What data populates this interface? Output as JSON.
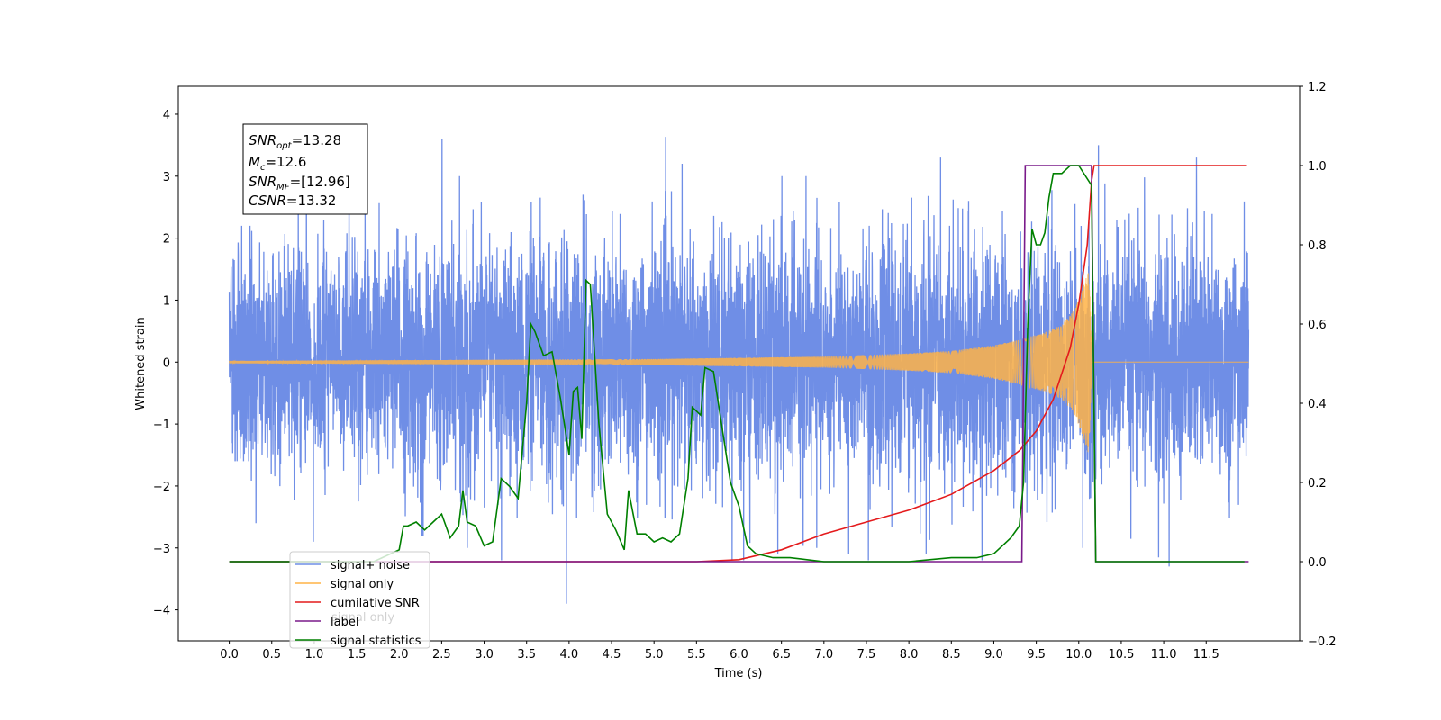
{
  "chart_data": {
    "type": "line",
    "xlabel": "Time (s)",
    "ylabel": "Whitened strain",
    "xlim": [
      -0.6,
      12.6
    ],
    "ylim": [
      -4.5,
      4.45
    ],
    "y2lim": [
      -0.2,
      1.2
    ],
    "x_ticks": [
      0.0,
      0.5,
      1.0,
      1.5,
      2.0,
      2.5,
      3.0,
      3.5,
      4.0,
      4.5,
      5.0,
      5.5,
      6.0,
      6.5,
      7.0,
      7.5,
      8.0,
      8.5,
      9.0,
      9.5,
      10.0,
      10.5,
      11.0,
      11.5
    ],
    "x_tick_labels": [
      "0.0",
      "0.5",
      "1.0",
      "1.5",
      "2.0",
      "2.5",
      "3.0",
      "3.5",
      "4.0",
      "4.5",
      "5.0",
      "5.5",
      "6.0",
      "6.5",
      "7.0",
      "7.5",
      "8.0",
      "8.5",
      "9.0",
      "9.5",
      "10.0",
      "10.5",
      "11.0",
      "11.5"
    ],
    "y_ticks": [
      -4,
      -3,
      -2,
      -1,
      0,
      1,
      2,
      3,
      4
    ],
    "y_tick_labels": [
      "−4",
      "−3",
      "−2",
      "−1",
      "0",
      "1",
      "2",
      "3",
      "4"
    ],
    "y2_ticks": [
      -0.2,
      0.0,
      0.2,
      0.4,
      0.6,
      0.8,
      1.0,
      1.2
    ],
    "y2_tick_labels": [
      "−0.2",
      "0.0",
      "0.2",
      "0.4",
      "0.6",
      "0.8",
      "1.0",
      "1.2"
    ],
    "grid": false,
    "legend_position": "lower-left",
    "annotation": [
      {
        "sym": "SNR",
        "sub": "opt",
        "val": "=13.28"
      },
      {
        "sym": "M",
        "sub": "c",
        "val": "=12.6"
      },
      {
        "sym": "SNR",
        "sub": "MF",
        "val": "=[12.96]"
      },
      {
        "sym": "CSNR",
        "sub": "",
        "val": "=13.32"
      }
    ],
    "series": [
      {
        "name": "signal+ noise",
        "axis": "left",
        "color": "#6f8ee6",
        "description": "whitened noisy strain spanning 0 to 12 s",
        "envelope_hi": [
          2.2,
          2.7,
          3.3,
          3.4,
          3.8,
          3.2,
          3.2,
          3.8,
          3.9,
          3.3,
          3.6,
          3.0,
          3.2,
          3.1,
          3.4,
          3.8,
          3.2,
          4.0,
          3.4,
          3.3,
          3.8,
          3.2,
          3.1,
          3.5,
          3.4,
          3.8,
          3.0,
          3.0,
          3.0,
          3.3,
          3.4,
          3.3,
          3.1,
          3.5,
          3.3,
          3.2,
          3.8,
          3.0,
          3.4,
          3.1,
          3.3,
          3.5,
          3.8,
          3.6,
          3.1,
          3.3,
          3.3,
          3.2,
          3.5
        ],
        "envelope_lo": [
          -1.6,
          -2.6,
          -3.8,
          -3.0,
          -2.9,
          -3.1,
          -3.4,
          -3.0,
          -3.1,
          -2.8,
          -3.2,
          -3.0,
          -3.3,
          -3.2,
          -3.4,
          -3.7,
          -3.9,
          -3.4,
          -3.0,
          -3.2,
          -3.6,
          -3.1,
          -3.4,
          -3.1,
          -3.2,
          -3.3,
          -3.1,
          -3.2,
          -3.0,
          -3.1,
          -3.2,
          -3.1,
          -3.4,
          -3.1,
          -3.9,
          -3.0,
          -3.2,
          -3.1,
          -3.4,
          -3.6,
          -3.3,
          -3.0,
          -3.6,
          -3.5,
          -3.3,
          -3.3,
          -3.5,
          -4.1,
          -2.9
        ]
      },
      {
        "name": "signal only",
        "axis": "left",
        "color": "#ffb347",
        "description": "chirp with amplitude growing to merger near 10.15 s",
        "amplitude_points": [
          [
            0.0,
            0.02
          ],
          [
            5.0,
            0.05
          ],
          [
            7.0,
            0.09
          ],
          [
            8.0,
            0.14
          ],
          [
            8.5,
            0.18
          ],
          [
            9.0,
            0.27
          ],
          [
            9.3,
            0.36
          ],
          [
            9.6,
            0.48
          ],
          [
            9.8,
            0.6
          ],
          [
            9.95,
            0.85
          ],
          [
            10.05,
            1.2
          ],
          [
            10.12,
            1.5
          ],
          [
            10.16,
            0.0
          ],
          [
            12.0,
            0.0
          ]
        ]
      },
      {
        "name": "cumilative SNR",
        "axis": "right",
        "color": "#e41a1c",
        "points": [
          [
            0.0,
            0.0
          ],
          [
            5.5,
            0.0
          ],
          [
            6.0,
            0.005
          ],
          [
            6.5,
            0.03
          ],
          [
            7.0,
            0.07
          ],
          [
            7.5,
            0.1
          ],
          [
            8.0,
            0.13
          ],
          [
            8.5,
            0.17
          ],
          [
            9.0,
            0.23
          ],
          [
            9.3,
            0.28
          ],
          [
            9.5,
            0.33
          ],
          [
            9.7,
            0.41
          ],
          [
            9.9,
            0.54
          ],
          [
            10.0,
            0.65
          ],
          [
            10.1,
            0.8
          ],
          [
            10.15,
            0.96
          ],
          [
            10.18,
            1.0
          ],
          [
            11.98,
            1.0
          ]
        ]
      },
      {
        "name": "label",
        "axis": "right",
        "color": "#7a1a8a",
        "points": [
          [
            0.0,
            0.0
          ],
          [
            9.33,
            0.0
          ],
          [
            9.37,
            1.0
          ],
          [
            10.15,
            1.0
          ],
          [
            10.2,
            0.0
          ],
          [
            12.0,
            0.0
          ]
        ]
      },
      {
        "name": "signal statistics",
        "axis": "right",
        "color": "#008000",
        "points": [
          [
            0.0,
            0.0
          ],
          [
            1.7,
            0.0
          ],
          [
            1.8,
            0.01
          ],
          [
            2.0,
            0.03
          ],
          [
            2.05,
            0.09
          ],
          [
            2.1,
            0.09
          ],
          [
            2.2,
            0.1
          ],
          [
            2.3,
            0.08
          ],
          [
            2.4,
            0.1
          ],
          [
            2.5,
            0.12
          ],
          [
            2.6,
            0.06
          ],
          [
            2.7,
            0.09
          ],
          [
            2.75,
            0.18
          ],
          [
            2.8,
            0.1
          ],
          [
            2.9,
            0.09
          ],
          [
            3.0,
            0.04
          ],
          [
            3.1,
            0.05
          ],
          [
            3.2,
            0.21
          ],
          [
            3.3,
            0.19
          ],
          [
            3.4,
            0.16
          ],
          [
            3.5,
            0.4
          ],
          [
            3.55,
            0.6
          ],
          [
            3.6,
            0.58
          ],
          [
            3.7,
            0.52
          ],
          [
            3.8,
            0.53
          ],
          [
            3.9,
            0.41
          ],
          [
            4.0,
            0.27
          ],
          [
            4.05,
            0.43
          ],
          [
            4.1,
            0.44
          ],
          [
            4.15,
            0.31
          ],
          [
            4.2,
            0.71
          ],
          [
            4.25,
            0.7
          ],
          [
            4.35,
            0.35
          ],
          [
            4.45,
            0.12
          ],
          [
            4.55,
            0.08
          ],
          [
            4.65,
            0.03
          ],
          [
            4.7,
            0.18
          ],
          [
            4.8,
            0.07
          ],
          [
            4.9,
            0.07
          ],
          [
            5.0,
            0.05
          ],
          [
            5.1,
            0.06
          ],
          [
            5.2,
            0.05
          ],
          [
            5.3,
            0.07
          ],
          [
            5.4,
            0.21
          ],
          [
            5.45,
            0.39
          ],
          [
            5.55,
            0.37
          ],
          [
            5.6,
            0.49
          ],
          [
            5.7,
            0.48
          ],
          [
            5.8,
            0.34
          ],
          [
            5.9,
            0.2
          ],
          [
            6.0,
            0.14
          ],
          [
            6.1,
            0.04
          ],
          [
            6.2,
            0.02
          ],
          [
            6.4,
            0.01
          ],
          [
            6.6,
            0.01
          ],
          [
            6.8,
            0.005
          ],
          [
            7.0,
            0.0
          ],
          [
            8.0,
            0.0
          ],
          [
            8.5,
            0.01
          ],
          [
            8.8,
            0.01
          ],
          [
            9.0,
            0.02
          ],
          [
            9.1,
            0.04
          ],
          [
            9.2,
            0.06
          ],
          [
            9.3,
            0.09
          ],
          [
            9.35,
            0.2
          ],
          [
            9.4,
            0.6
          ],
          [
            9.45,
            0.84
          ],
          [
            9.5,
            0.8
          ],
          [
            9.55,
            0.8
          ],
          [
            9.6,
            0.83
          ],
          [
            9.65,
            0.92
          ],
          [
            9.7,
            0.98
          ],
          [
            9.8,
            0.98
          ],
          [
            9.9,
            1.0
          ],
          [
            10.0,
            1.0
          ],
          [
            10.15,
            0.95
          ],
          [
            10.2,
            0.0
          ],
          [
            11.95,
            0.0
          ]
        ]
      }
    ],
    "legend": [
      "signal+ noise",
      "signal only",
      "cumilative SNR",
      "label",
      "signal statistics"
    ],
    "legend_hidden_text": "signal only"
  }
}
